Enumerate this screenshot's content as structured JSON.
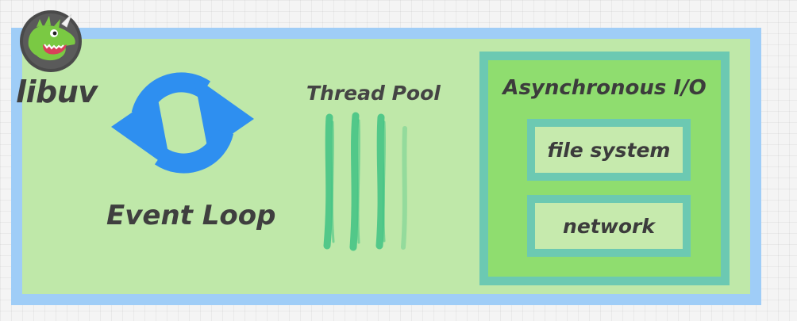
{
  "diagram": {
    "libuv_label": "libuv",
    "event_loop_label": "Event Loop",
    "thread_pool_label": "Thread Pool",
    "async_io": {
      "title": "Asynchronous I/O",
      "items": [
        "file system",
        "network"
      ]
    }
  },
  "icons": {
    "logo": "dinosaur-logo-icon",
    "loop": "circular-arrows-icon",
    "threads": "thread-strokes-icon"
  },
  "colors": {
    "frame_border": "#9fcdf7",
    "frame_fill": "#bfe8a9",
    "loop_arrows": "#2e8ff0",
    "thread_strokes": "#46c485",
    "async_border": "#6cc9b2",
    "async_fill": "#8fdd6f",
    "sub_fill": "#c6eaad",
    "text": "#3f3f3f"
  }
}
